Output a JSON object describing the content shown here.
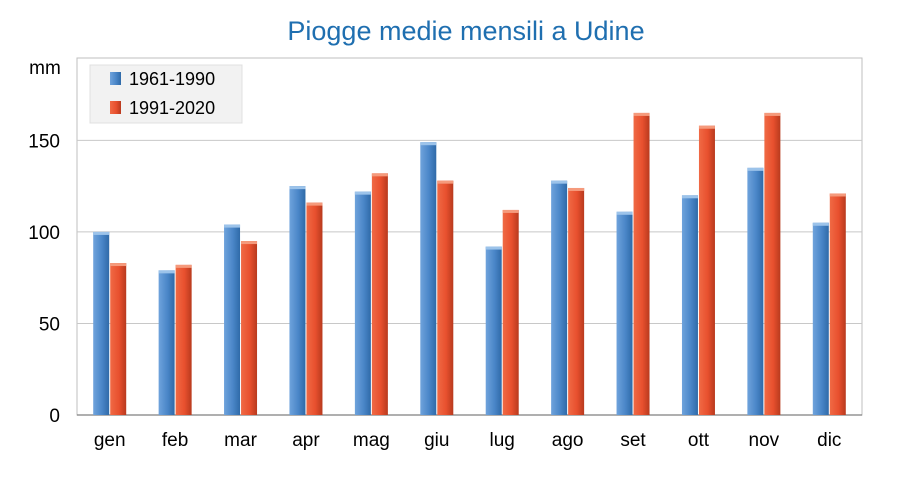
{
  "chart_data": {
    "type": "bar",
    "title": "Piogge medie mensili a Udine",
    "ylabel": "mm",
    "xlabel": "",
    "categories": [
      "gen",
      "feb",
      "mar",
      "apr",
      "mag",
      "giu",
      "lug",
      "ago",
      "set",
      "ott",
      "nov",
      "dic"
    ],
    "series": [
      {
        "name": "1961-1990",
        "values": [
          100,
          79,
          104,
          125,
          122,
          149,
          92,
          128,
          111,
          120,
          135,
          105
        ],
        "color": "#4a86c8"
      },
      {
        "name": "1991-2020",
        "values": [
          83,
          82,
          95,
          116,
          132,
          128,
          112,
          124,
          165,
          158,
          165,
          121
        ],
        "color": "#e8502e"
      }
    ],
    "ylim": [
      0,
      195
    ],
    "yticks": [
      0,
      50,
      100,
      150
    ],
    "grid": true,
    "legend": "top-left",
    "title_color": "#1f6fb0"
  }
}
